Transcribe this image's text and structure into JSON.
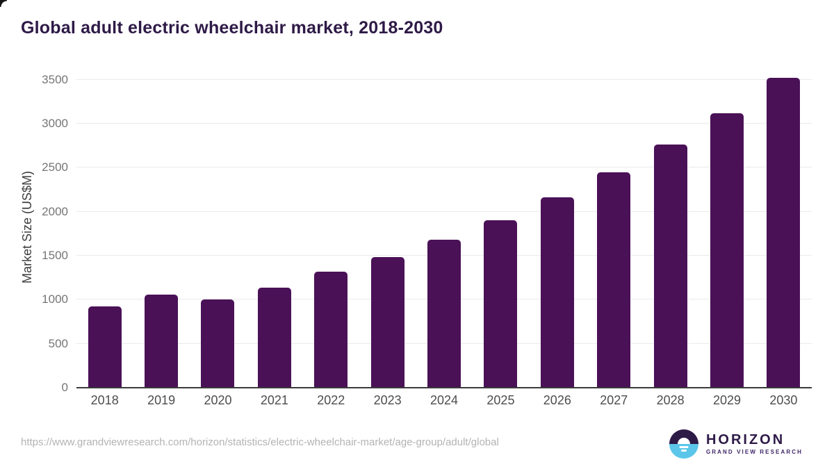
{
  "title": "Global adult electric wheelchair market, 2018-2030",
  "colors": {
    "bar": "#4a1157",
    "title_text": "#2e1a47",
    "logo_purple": "#2e1a47",
    "logo_blue": "#5bc6ea",
    "gridline": "#ebebeb",
    "axis_line": "#3a3a3a"
  },
  "chart_data": {
    "type": "bar",
    "title": "Global adult electric wheelchair market, 2018-2030",
    "categories": [
      "2018",
      "2019",
      "2020",
      "2021",
      "2022",
      "2023",
      "2024",
      "2025",
      "2026",
      "2027",
      "2028",
      "2029",
      "2030"
    ],
    "values": [
      920,
      1060,
      1000,
      1140,
      1320,
      1480,
      1680,
      1900,
      2160,
      2450,
      2760,
      3120,
      3520
    ],
    "xlabel": "",
    "ylabel": "Market Size (US$M)",
    "ylim": [
      0,
      3500
    ],
    "yticks": [
      0,
      500,
      1000,
      1500,
      2000,
      2500,
      3000,
      3500
    ],
    "grid": true,
    "legend": false,
    "bar_color": "#4a1157"
  },
  "footer": {
    "source_url": "https://www.grandviewresearch.com/horizon/statistics/electric-wheelchair-market/age-group/adult/global",
    "logo": {
      "name": "HORIZON",
      "subtitle": "GRAND VIEW RESEARCH"
    }
  }
}
